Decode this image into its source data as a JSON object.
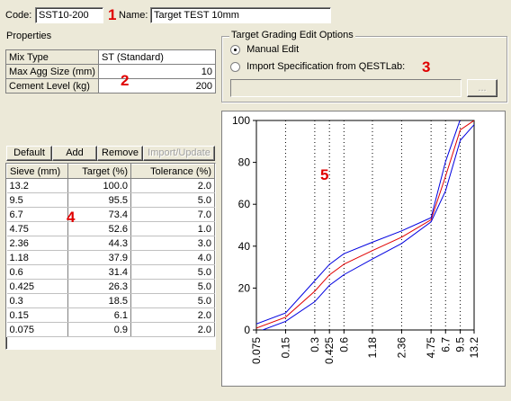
{
  "header": {
    "code_label": "Code:",
    "code_value": "SST10-200",
    "name_label": "Name:",
    "name_value": "Target TEST 10mm"
  },
  "annotations": {
    "m1": "1",
    "m2": "2",
    "m3": "3",
    "m4": "4",
    "m5": "5"
  },
  "properties": {
    "title": "Properties",
    "rows": [
      {
        "label": "Mix Type",
        "value": "ST (Standard)"
      },
      {
        "label": "Max Agg Size (mm)",
        "value": "10"
      },
      {
        "label": "Cement Level (kg)",
        "value": "200"
      }
    ]
  },
  "grading_options": {
    "title": "Target Grading Edit Options",
    "manual_label": "Manual Edit",
    "manual_selected": true,
    "import_label": "Import Specification from QESTLab:",
    "import_value": "",
    "browse_label": "..."
  },
  "toolbar": {
    "default_label": "Default",
    "add_label": "Add",
    "remove_label": "Remove",
    "import_update_label": "Import/Update"
  },
  "sieve_table": {
    "headers": [
      "Sieve (mm)",
      "Target (%)",
      "Tolerance (%)"
    ],
    "rows": [
      [
        "13.2",
        "100.0",
        "2.0"
      ],
      [
        "9.5",
        "95.5",
        "5.0"
      ],
      [
        "6.7",
        "73.4",
        "7.0"
      ],
      [
        "4.75",
        "52.6",
        "1.0"
      ],
      [
        "2.36",
        "44.3",
        "3.0"
      ],
      [
        "1.18",
        "37.9",
        "4.0"
      ],
      [
        "0.6",
        "31.4",
        "5.0"
      ],
      [
        "0.425",
        "26.3",
        "5.0"
      ],
      [
        "0.3",
        "18.5",
        "5.0"
      ],
      [
        "0.15",
        "6.1",
        "2.0"
      ],
      [
        "0.075",
        "0.9",
        "2.0"
      ]
    ]
  },
  "colors": {
    "target_line": "#e00000",
    "limit_line": "#0000e0",
    "annotation": "#e00000"
  },
  "chart_data": {
    "type": "line",
    "x": [
      "0.075",
      "0.15",
      "0.3",
      "0.425",
      "0.6",
      "1.18",
      "2.36",
      "4.75",
      "6.7",
      "9.5",
      "13.2"
    ],
    "ylim": [
      0,
      100
    ],
    "y_ticks": [
      "0",
      "20",
      "40",
      "60",
      "80",
      "100"
    ],
    "x_scale": "log",
    "grid": "vertical dotted lines at each sieve",
    "series": [
      {
        "role": "target",
        "values": [
          0.9,
          6.1,
          18.5,
          26.3,
          31.4,
          37.9,
          44.3,
          52.6,
          73.4,
          95.5,
          100.0
        ]
      },
      {
        "role": "upper",
        "values": [
          2.9,
          8.1,
          23.5,
          31.3,
          36.4,
          41.9,
          47.3,
          53.6,
          80.4,
          100.5,
          102.0
        ]
      },
      {
        "role": "lower",
        "values": [
          -1.1,
          4.1,
          13.5,
          21.3,
          26.4,
          33.9,
          41.3,
          51.6,
          66.4,
          90.5,
          98.0
        ]
      }
    ]
  }
}
